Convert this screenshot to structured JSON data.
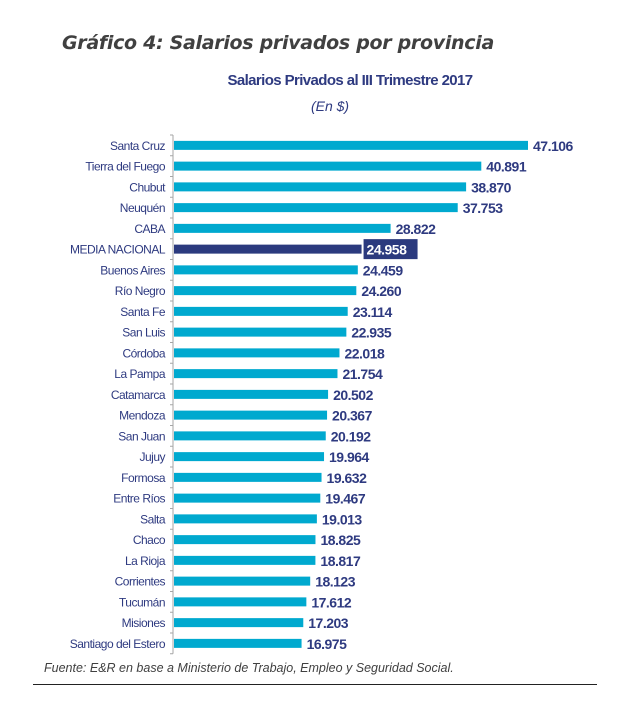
{
  "figure_title": "Gráfico 4: Salarios privados por provincia",
  "source_note": "Fuente: E&R en base a Ministerio de Trabajo, Empleo y Seguridad Social.",
  "colors": {
    "bar": "#00a9cf",
    "highlight": "#2b3a7e",
    "label": "#2e3a80",
    "axis": "#a6a6a6"
  },
  "chart_data": {
    "type": "bar",
    "orientation": "horizontal",
    "title": "Salarios Privados al III Trimestre 2017",
    "subtitle": "(En $)",
    "xlabel": "",
    "ylabel": "",
    "grid": false,
    "legend": "none",
    "highlight_category": "MEDIA NACIONAL",
    "categories": [
      "Santa Cruz",
      "Tierra del Fuego",
      "Chubut",
      "Neuquén",
      "CABA",
      "MEDIA NACIONAL",
      "Buenos Aires",
      "Río Negro",
      "Santa Fe",
      "San Luis",
      "Córdoba",
      "La Pampa",
      "Catamarca",
      "Mendoza",
      "San Juan",
      "Jujuy",
      "Formosa",
      "Entre Ríos",
      "Salta",
      "Chaco",
      "La Rioja",
      "Corrientes",
      "Tucumán",
      "Misiones",
      "Santiago del Estero"
    ],
    "values": [
      47106,
      40891,
      38870,
      37753,
      28822,
      24958,
      24459,
      24260,
      23114,
      22935,
      22018,
      21754,
      20502,
      20367,
      20192,
      19964,
      19632,
      19467,
      19013,
      18825,
      18817,
      18123,
      17612,
      17203,
      16975
    ],
    "value_labels": [
      "47.106",
      "40.891",
      "38.870",
      "37.753",
      "28.822",
      "24.958",
      "24.459",
      "24.260",
      "23.114",
      "22.935",
      "22.018",
      "21.754",
      "20.502",
      "20.367",
      "20.192",
      "19.964",
      "19.632",
      "19.467",
      "19.013",
      "18.825",
      "18.817",
      "18.123",
      "17.612",
      "17.203",
      "16.975"
    ],
    "xlim": [
      0,
      47106
    ]
  }
}
